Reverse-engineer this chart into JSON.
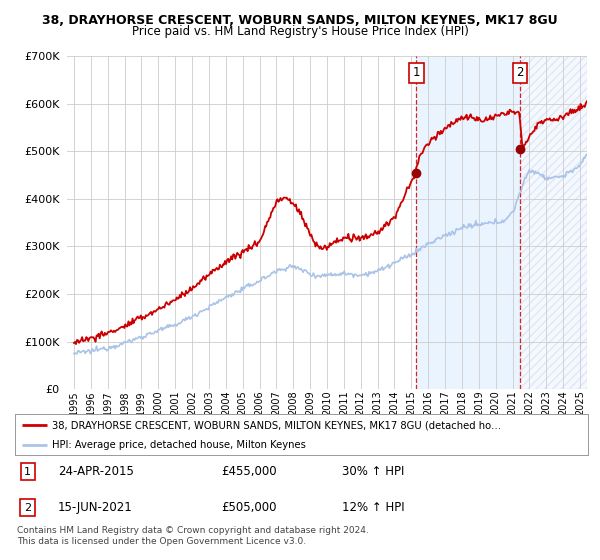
{
  "title_line1": "38, DRAYHORSE CRESCENT, WOBURN SANDS, MILTON KEYNES, MK17 8GU",
  "title_line2": "Price paid vs. HM Land Registry's House Price Index (HPI)",
  "ylim": [
    0,
    700000
  ],
  "xlim_start": 1994.6,
  "xlim_end": 2025.4,
  "sale1_x": 2015.3,
  "sale1_y": 455000,
  "sale2_x": 2021.45,
  "sale2_y": 505000,
  "hpi_color": "#aac4e8",
  "price_color": "#cc0000",
  "shade_color": "#ddeeff",
  "background_color": "#ffffff",
  "grid_color": "#cccccc",
  "legend_line1": "38, DRAYHORSE CRESCENT, WOBURN SANDS, MILTON KEYNES, MK17 8GU (detached ho…",
  "legend_line2": "HPI: Average price, detached house, Milton Keynes",
  "table_rows": [
    {
      "num": "1",
      "date": "24-APR-2015",
      "price": "£455,000",
      "change": "30% ↑ HPI"
    },
    {
      "num": "2",
      "date": "15-JUN-2021",
      "price": "£505,000",
      "change": "12% ↑ HPI"
    }
  ],
  "footer": "Contains HM Land Registry data © Crown copyright and database right 2024.\nThis data is licensed under the Open Government Licence v3.0."
}
